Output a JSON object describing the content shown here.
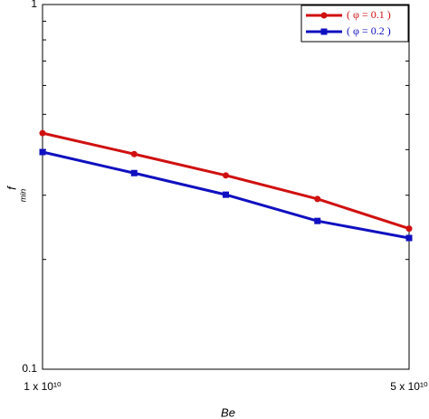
{
  "chart_data": {
    "type": "line",
    "xlabel": "Be",
    "ylabel": {
      "main": "f",
      "sub": "min"
    },
    "x": [
      10000000000,
      20000000000,
      30000000000,
      40000000000,
      50000000000
    ],
    "xlim": [
      10000000000,
      50000000000
    ],
    "xticks": [
      {
        "value": 10000000000,
        "label": "1 x 10¹⁰"
      },
      {
        "value": 50000000000,
        "label": "5 x 10¹⁰"
      }
    ],
    "ylim": [
      0.1,
      1
    ],
    "yticks": [
      0.1,
      1
    ],
    "ylog": true,
    "legend": "upper right",
    "series": [
      {
        "name": "( φ = 0.1 )",
        "color": "#d01010",
        "marker": "circle",
        "values": [
          0.444,
          0.389,
          0.34,
          0.293,
          0.243
        ]
      },
      {
        "name": "( φ = 0.2 )",
        "color": "#1010c0",
        "marker": "square",
        "values": [
          0.394,
          0.345,
          0.301,
          0.255,
          0.229
        ]
      }
    ]
  }
}
